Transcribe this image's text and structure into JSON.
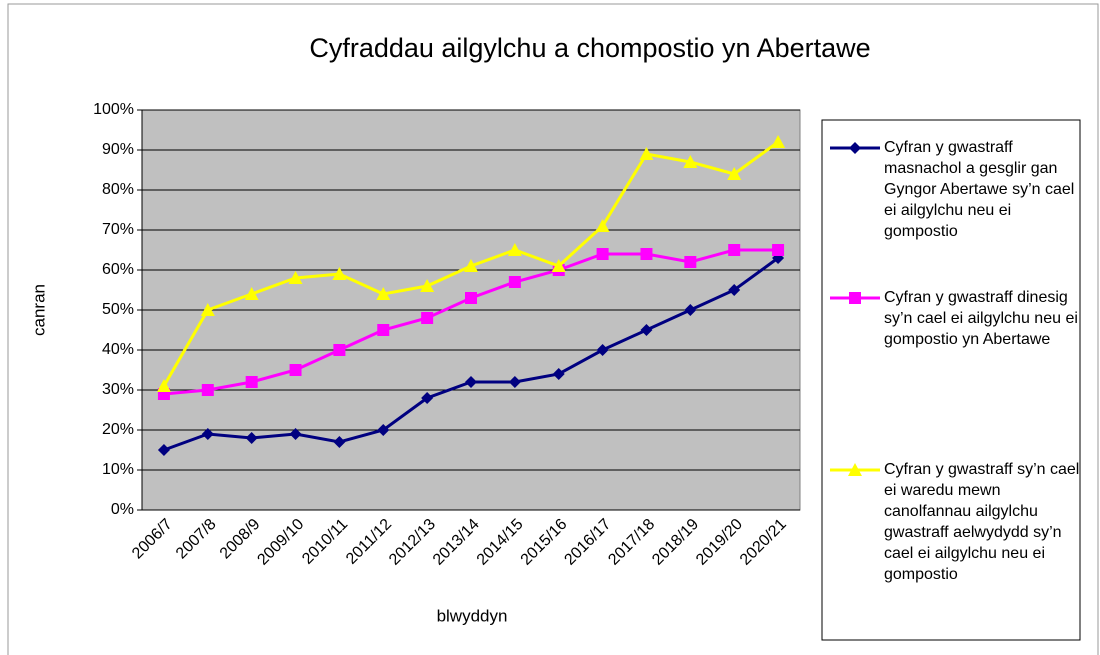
{
  "chart_data": {
    "type": "line",
    "title": "Cyfraddau ailgylchu a chompostio yn Abertawe",
    "x_label": "blwyddyn",
    "y_label": "canran",
    "categories": [
      "2006/7",
      "2007/8",
      "2008/9",
      "2009/10",
      "2010/11",
      "2011/12",
      "2012/13",
      "2013/14",
      "2014/15",
      "2015/16",
      "2016/17",
      "2017/18",
      "2018/19",
      "2019/20",
      "2020/21"
    ],
    "series": [
      {
        "name": "Cyfran y gwastraff masnachol a gesglir gan Gyngor Abertawe sy’n cael ei ailgylchu neu ei gompostio",
        "color": "#000080",
        "marker": "diamond",
        "values": [
          15,
          19,
          18,
          19,
          17,
          20,
          28,
          32,
          32,
          34,
          40,
          45,
          50,
          55,
          63
        ]
      },
      {
        "name": "Cyfran y gwastraff dinesig sy’n cael ei ailgylchu neu ei gompostio yn Abertawe",
        "color": "#ff00ff",
        "marker": "square",
        "values": [
          29,
          30,
          32,
          35,
          40,
          45,
          48,
          53,
          57,
          60,
          64,
          64,
          62,
          65,
          65
        ]
      },
      {
        "name": "Cyfran y gwastraff sy’n cael ei waredu mewn canolfannau ailgylchu gwastraff aelwydydd sy’n cael ei ailgylchu neu ei gompostio",
        "color": "#ffff00",
        "marker": "triangle",
        "values": [
          31,
          50,
          54,
          58,
          59,
          54,
          56,
          61,
          65,
          61,
          71,
          89,
          87,
          84,
          92
        ]
      }
    ],
    "ylim": [
      0,
      100
    ],
    "yticks": [
      {
        "value": 0,
        "label": "0%"
      },
      {
        "value": 10,
        "label": "10%"
      },
      {
        "value": 20,
        "label": "20%"
      },
      {
        "value": 30,
        "label": "30%"
      },
      {
        "value": 40,
        "label": "40%"
      },
      {
        "value": 50,
        "label": "50%"
      },
      {
        "value": 60,
        "label": "60%"
      },
      {
        "value": 70,
        "label": "70%"
      },
      {
        "value": 80,
        "label": "80%"
      },
      {
        "value": 90,
        "label": "90%"
      },
      {
        "value": 100,
        "label": "100%"
      }
    ],
    "grid": true,
    "plot_background": "#c0c0c0",
    "legend": "right"
  }
}
